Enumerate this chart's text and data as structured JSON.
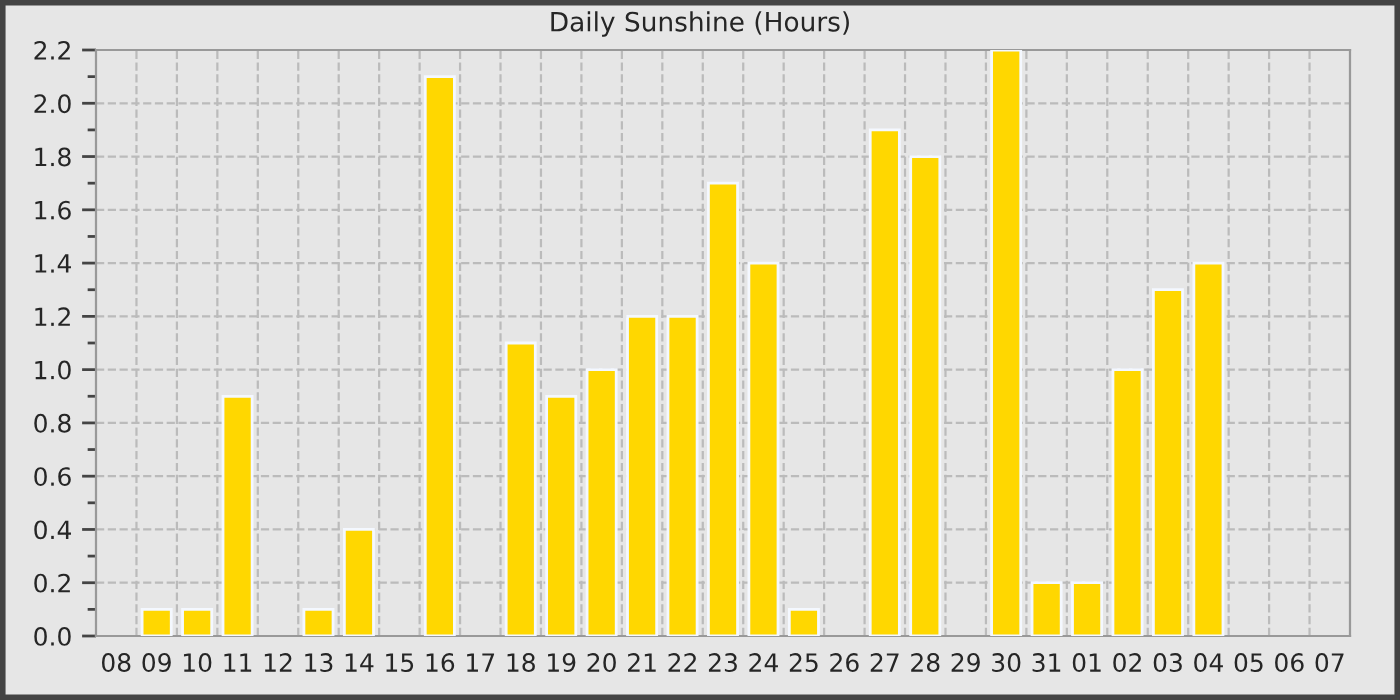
{
  "chart_data": {
    "type": "bar",
    "title": "Daily Sunshine (Hours)",
    "categories": [
      "08",
      "09",
      "10",
      "11",
      "12",
      "13",
      "14",
      "15",
      "16",
      "17",
      "18",
      "19",
      "20",
      "21",
      "22",
      "23",
      "24",
      "25",
      "26",
      "27",
      "28",
      "29",
      "30",
      "31",
      "01",
      "02",
      "03",
      "04",
      "05",
      "06",
      "07"
    ],
    "series": [
      {
        "color": "#ffd700",
        "values": [
          0,
          0.1,
          0.1,
          0.9,
          0,
          0.1,
          0.4,
          0,
          2.1,
          0,
          1.1,
          0.9,
          1.0,
          1.2,
          1.2,
          1.7,
          1.4,
          0.1,
          0,
          1.9,
          1.8,
          0,
          2.2,
          0.2,
          0.2,
          1.0,
          1.3,
          1.4,
          0,
          0,
          0
        ]
      }
    ],
    "ylim": [
      0,
      2.2
    ],
    "yticks": [
      {
        "value": 0,
        "label": "0.0"
      },
      {
        "value": 0.1,
        "label": null
      },
      {
        "value": 0.2,
        "label": "0.2"
      },
      {
        "value": 0.3,
        "label": null
      },
      {
        "value": 0.4,
        "label": "0.4"
      },
      {
        "value": 0.5,
        "label": null
      },
      {
        "value": 0.6,
        "label": "0.6"
      },
      {
        "value": 0.7,
        "label": null
      },
      {
        "value": 0.8,
        "label": "0.8"
      },
      {
        "value": 0.9,
        "label": null
      },
      {
        "value": 1.0,
        "label": "1.0"
      },
      {
        "value": 1.1,
        "label": null
      },
      {
        "value": 1.2,
        "label": "1.2"
      },
      {
        "value": 1.3,
        "label": null
      },
      {
        "value": 1.4,
        "label": "1.4"
      },
      {
        "value": 1.5,
        "label": null
      },
      {
        "value": 1.6,
        "label": "1.6"
      },
      {
        "value": 1.7,
        "label": null
      },
      {
        "value": 1.8,
        "label": "1.8"
      },
      {
        "value": 1.9,
        "label": null
      },
      {
        "value": 2.0,
        "label": "2.0"
      },
      {
        "value": 2.1,
        "label": null
      },
      {
        "value": 2.2,
        "label": "2.2"
      }
    ],
    "grid": true,
    "legend": false
  }
}
